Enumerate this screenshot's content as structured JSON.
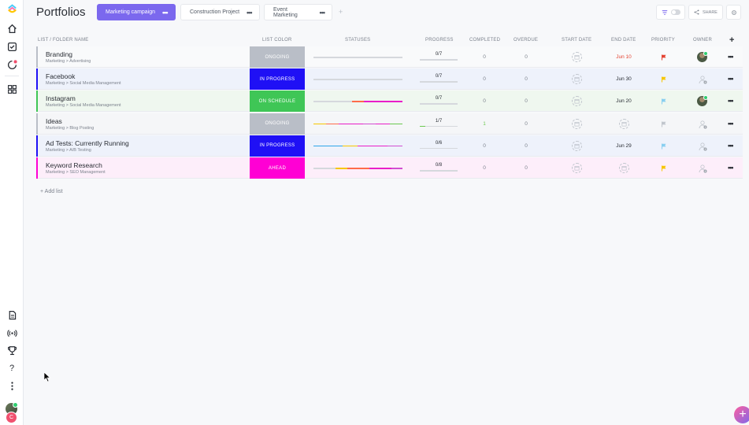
{
  "sidebar": {
    "icons": [
      "clickup-logo-icon",
      "home-icon",
      "checkbox-icon",
      "notifications-icon",
      "apps-grid-icon",
      "docs-icon",
      "broadcast-icon",
      "trophy-icon",
      "help-icon",
      "more-vertical-icon"
    ],
    "avatar_letter": "C"
  },
  "header": {
    "title": "Portfolios",
    "tabs": [
      {
        "label": "Marketing campaign",
        "active": true
      },
      {
        "label": "Construction Project",
        "active": false
      },
      {
        "label": "Event Marketing",
        "active": false
      }
    ],
    "tab_add": "+",
    "share_label": "SHARE"
  },
  "table": {
    "columns": {
      "name": "LIST / FOLDER NAME",
      "color": "LIST COLOR",
      "statuses": "STATUSES",
      "progress": "PROGRESS",
      "completed": "COMPLETED",
      "overdue": "OVERDUE",
      "start": "START DATE",
      "end": "END DATE",
      "priority": "PRIORITY",
      "owner": "OWNER",
      "add": "+"
    },
    "rows": [
      {
        "name": "Branding",
        "path": "Marketing > Advertising",
        "status": "ONGOING",
        "color": "#b9bec7",
        "bar": "#b9bec7",
        "progress": "0/7",
        "progress_fraction": 0,
        "completed": "0",
        "overdue": "0",
        "end_date": "Jun 10",
        "end_color": "#e44332",
        "flag": "#e44332",
        "owner": "avatar",
        "row_bg": "#f9fafb",
        "segments": [
          [
            "#d5d8dd",
            1
          ]
        ]
      },
      {
        "name": "Facebook",
        "path": "Marketing > Social Media Management",
        "status": "IN PROGRESS",
        "color": "#1f10f5",
        "bar": "#1f10f5",
        "progress": "0/7",
        "progress_fraction": 0,
        "completed": "0",
        "overdue": "0",
        "end_date": "Jun 30",
        "end_color": "#292d34",
        "flag": "#f7c600",
        "owner": "empty",
        "row_bg": "#eef2fb",
        "segments": [
          [
            "#d5d8dd",
            1
          ]
        ]
      },
      {
        "name": "Instagram",
        "path": "Marketing > Social Media Management",
        "status": "ON SCHEDULE",
        "color": "#3fc656",
        "bar": "#3fc656",
        "progress": "0/7",
        "progress_fraction": 0,
        "completed": "0",
        "overdue": "0",
        "end_date": "Jun 20",
        "end_color": "#292d34",
        "flag": "#89cff0",
        "owner": "avatar",
        "row_bg": "#eff7ef",
        "segments": [
          [
            "#d5d8dd",
            0.43
          ],
          [
            "#ff6b4a",
            0.14
          ],
          [
            "#e91ec9",
            0.43
          ]
        ]
      },
      {
        "name": "Ideas",
        "path": "Marketing > Blog Posting",
        "status": "ONGOING",
        "color": "#b9bec7",
        "bar": "#b9bec7",
        "progress": "1/7",
        "progress_fraction": 0.143,
        "completed": "1",
        "overdue": "0",
        "end_date": "",
        "end_color": "#292d34",
        "flag": "#c1c6cd",
        "owner": "empty",
        "row_bg": "#f5f6f8",
        "completed_color": "#6bc950",
        "segments": [
          [
            "#f7c600",
            0.14
          ],
          [
            "#ff6b4a",
            0.14
          ],
          [
            "#e91ec9",
            0.14
          ],
          [
            "#e91ec9",
            0.14
          ],
          [
            "#d14fd1",
            0.14
          ],
          [
            "#e91ec9",
            0.16
          ],
          [
            "#6bc950",
            0.14
          ]
        ]
      },
      {
        "name": "Ad Tests: Currently Running",
        "path": "Marketing > A/B Testing",
        "status": "IN PROGRESS",
        "color": "#1f10f5",
        "bar": "#1f10f5",
        "progress": "0/6",
        "progress_fraction": 0,
        "completed": "0",
        "overdue": "0",
        "end_date": "Jun 29",
        "end_color": "#292d34",
        "flag": "#89cff0",
        "owner": "empty",
        "row_bg": "#eef2fb",
        "segments": [
          [
            "#2fa6e8",
            0.33
          ],
          [
            "#f7c600",
            0.17
          ],
          [
            "#e91ec9",
            0.33
          ],
          [
            "#d14fd1",
            0.17
          ]
        ]
      },
      {
        "name": "Keyword Research",
        "path": "Marketing > SEO Management",
        "status": "AHEAD",
        "color": "#ff00d4",
        "bar": "#ff00d4",
        "progress": "0/8",
        "progress_fraction": 0,
        "completed": "0",
        "overdue": "0",
        "end_date": "",
        "end_color": "#292d34",
        "flag": "#f7c600",
        "owner": "empty",
        "row_bg": "#fdeefa",
        "segments": [
          [
            "#d5d8dd",
            0.25
          ],
          [
            "#f7c600",
            0.13
          ],
          [
            "#ff6b4a",
            0.25
          ],
          [
            "#e91ec9",
            0.25
          ],
          [
            "#d14fd1",
            0.12
          ]
        ]
      }
    ],
    "add_list_label": "+ Add list"
  }
}
